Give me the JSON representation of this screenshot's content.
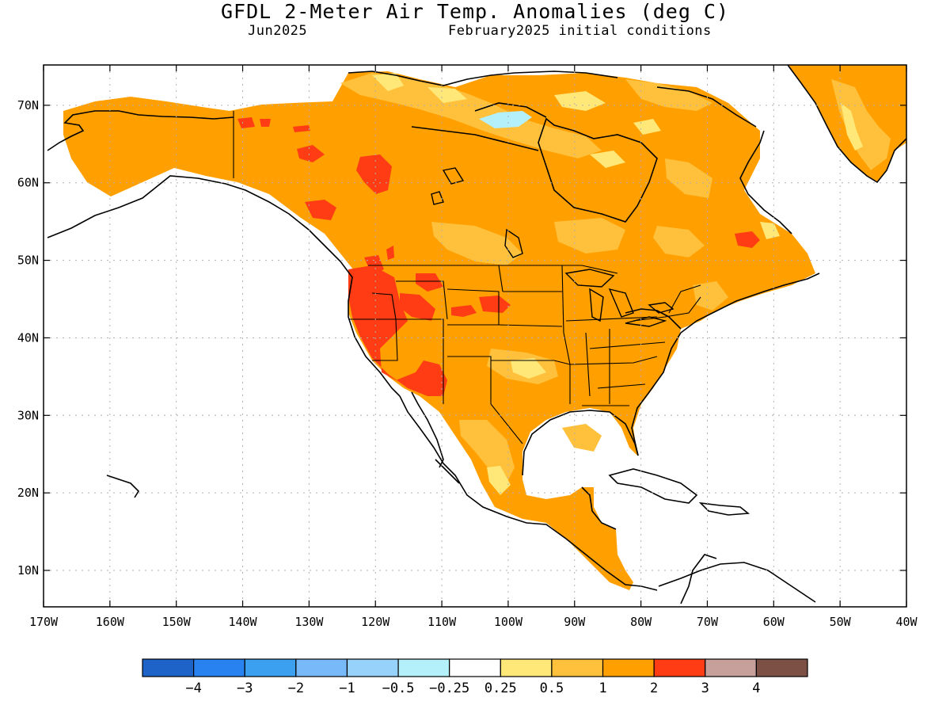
{
  "title": "GFDL 2-Meter Air Temp. Anomalies (deg C)",
  "subtitle_left": "Jun2025",
  "subtitle_right": "February2025 initial conditions",
  "lon_ticks": [
    "170W",
    "160W",
    "150W",
    "140W",
    "130W",
    "120W",
    "110W",
    "100W",
    "90W",
    "80W",
    "70W",
    "60W",
    "50W",
    "40W"
  ],
  "lat_ticks": [
    "70N",
    "60N",
    "50N",
    "40N",
    "30N",
    "20N",
    "10N"
  ],
  "colorbar": {
    "colors": [
      "#1e64c8",
      "#2882f0",
      "#3ca0f0",
      "#78b9fa",
      "#96d2fa",
      "#b4f0fa",
      "#ffffff",
      "#ffe878",
      "#ffc03c",
      "#ffa000",
      "#ff3c14",
      "#c8a09b",
      "#7d5046"
    ],
    "labels": [
      "−4",
      "−3",
      "−2",
      "−1",
      "−0.5",
      "−0.25",
      "0.25",
      "0.5",
      "1",
      "2",
      "3",
      "4"
    ]
  },
  "colors": {
    "anom_0_5": "#ffe878",
    "anom_1": "#ffc03c",
    "anom_2": "#ffa000",
    "anom_3": "#ff3c14",
    "cool": "#b4f0fa"
  }
}
